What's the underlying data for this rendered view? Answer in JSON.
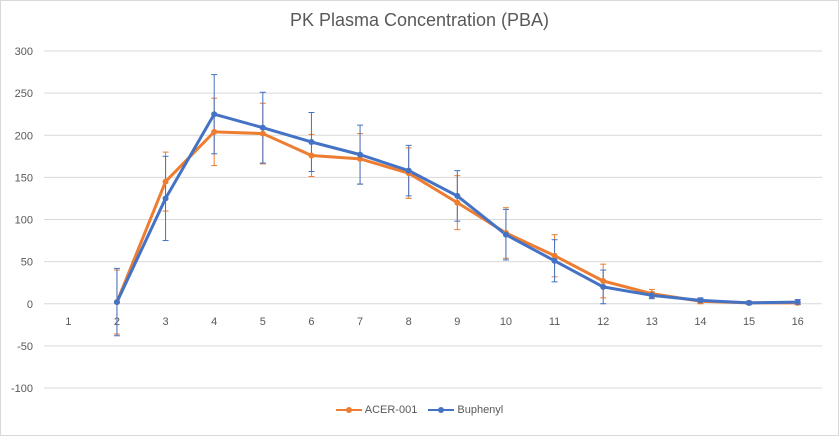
{
  "chart_data": {
    "type": "line",
    "title": "PK Plasma Concentration (PBA)",
    "xlabel": "",
    "ylabel": "",
    "categories": [
      "1",
      "2",
      "3",
      "4",
      "5",
      "6",
      "7",
      "8",
      "9",
      "10",
      "11",
      "12",
      "13",
      "14",
      "15",
      "16"
    ],
    "y_ticks": [
      "300",
      "250",
      "200",
      "150",
      "100",
      "50",
      "0",
      "-50",
      "-100"
    ],
    "ylim": [
      -100,
      300
    ],
    "grid": true,
    "legend_position": "bottom",
    "series": [
      {
        "name": "ACER-001",
        "color": "#ed7d31",
        "values": [
          null,
          2,
          145,
          204,
          202,
          176,
          172,
          155,
          120,
          84,
          57,
          27,
          12,
          3,
          1,
          1
        ],
        "error": [
          null,
          38,
          35,
          40,
          36,
          25,
          30,
          30,
          32,
          30,
          25,
          20,
          5,
          3,
          2,
          2
        ]
      },
      {
        "name": "Buphenyl",
        "color": "#4472c4",
        "values": [
          null,
          2,
          125,
          225,
          209,
          192,
          177,
          158,
          128,
          82,
          51,
          20,
          10,
          4,
          1,
          2
        ],
        "error": [
          null,
          40,
          50,
          47,
          42,
          35,
          35,
          30,
          30,
          30,
          25,
          20,
          4,
          3,
          2,
          3
        ]
      }
    ]
  }
}
